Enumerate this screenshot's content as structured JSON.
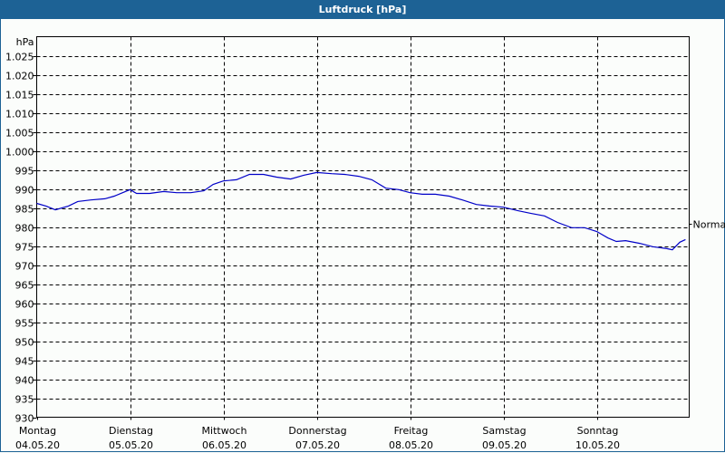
{
  "title": "Luftdruck [hPa]",
  "chart_data": {
    "type": "line",
    "title": "Luftdruck [hPa]",
    "ylabel": "hPa",
    "xlabel": "",
    "ylim": [
      930,
      1030
    ],
    "grid": true,
    "yticks": [
      "930",
      "935",
      "940",
      "945",
      "950",
      "955",
      "960",
      "965",
      "970",
      "975",
      "980",
      "985",
      "990",
      "995",
      "1.000",
      "1.005",
      "1.010",
      "1.015",
      "1.020",
      "1.025"
    ],
    "categories": [
      {
        "day": "Montag",
        "date": "04.05.20"
      },
      {
        "day": "Dienstag",
        "date": "05.05.20"
      },
      {
        "day": "Mittwoch",
        "date": "06.05.20"
      },
      {
        "day": "Donnerstag",
        "date": "07.05.20"
      },
      {
        "day": "Freitag",
        "date": "08.05.20"
      },
      {
        "day": "Samstag",
        "date": "09.05.20"
      },
      {
        "day": "Sonntag",
        "date": "10.05.20"
      }
    ],
    "annotations": [
      {
        "label": "Normal",
        "side": "right",
        "value": 980.9
      }
    ],
    "series": [
      {
        "name": "Luftdruck",
        "color": "#0000c8",
        "x_days": [
          0,
          0.1,
          0.2,
          0.34,
          0.44,
          0.58,
          0.73,
          0.83,
          0.92,
          1.0,
          1.07,
          1.21,
          1.36,
          1.5,
          1.65,
          1.79,
          1.89,
          2.0,
          2.14,
          2.28,
          2.43,
          2.57,
          2.72,
          2.86,
          3.0,
          3.16,
          3.3,
          3.45,
          3.59,
          3.74,
          3.88,
          4.0,
          4.13,
          4.27,
          4.42,
          4.56,
          4.71,
          4.85,
          5.0,
          5.15,
          5.29,
          5.44,
          5.58,
          5.73,
          5.87,
          6.0,
          6.12,
          6.21,
          6.31,
          6.46,
          6.6,
          6.75,
          6.81,
          6.89,
          6.95
        ],
        "values": [
          986.2,
          985.5,
          984.5,
          985.5,
          986.7,
          987.1,
          987.4,
          988.1,
          989.0,
          989.8,
          988.8,
          988.8,
          989.3,
          989.0,
          989.0,
          989.5,
          991.2,
          992.1,
          992.4,
          993.8,
          993.8,
          993.1,
          992.6,
          993.6,
          994.3,
          994.0,
          993.8,
          993.3,
          992.4,
          990.2,
          989.8,
          989.0,
          988.6,
          988.6,
          988.1,
          987.1,
          985.9,
          985.5,
          985.2,
          984.3,
          983.6,
          982.9,
          981.2,
          979.8,
          979.8,
          978.8,
          977.1,
          976.2,
          976.4,
          975.7,
          974.8,
          974.3,
          974.0,
          976.0,
          976.7
        ]
      }
    ]
  }
}
